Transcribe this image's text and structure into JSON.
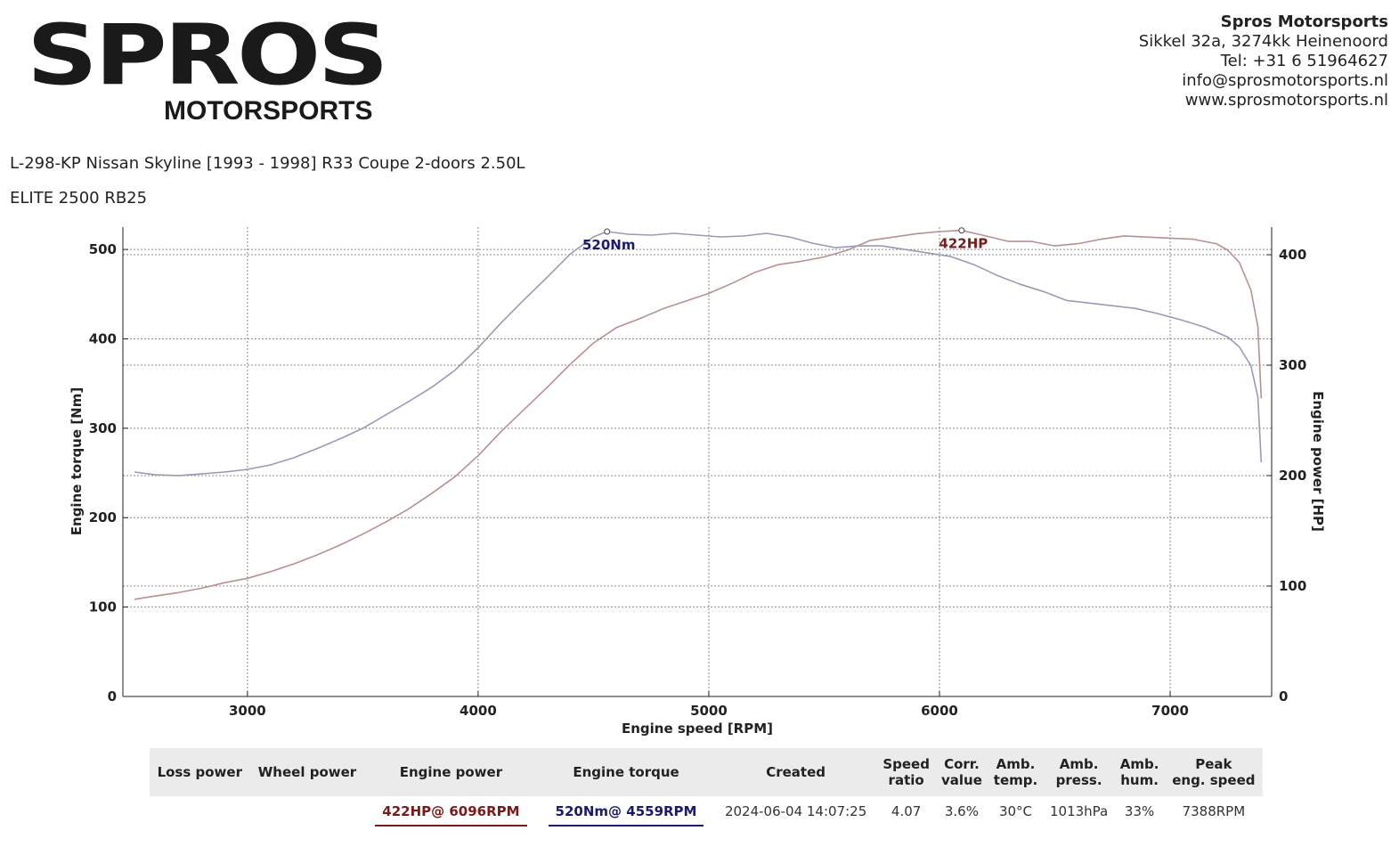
{
  "logo": {
    "main": "SPROS",
    "sub": "MOTORSPORTS"
  },
  "address": {
    "company": "Spros Motorsports",
    "street": "Sikkel 32a, 3274kk Heinenoord",
    "phone": "Tel: +31 6 51964627",
    "email": "info@sprosmotorsports.nl",
    "web": "www.sprosmotorsports.nl"
  },
  "vehicle": "L-298-KP Nissan Skyline [1993 - 1998] R33 Coupe 2-doors 2.50L",
  "engine": "ELITE 2500 RB25",
  "colors": {
    "torque": "#9a9ab8",
    "power": "#b89090",
    "torque_label": "#1a1a6e",
    "power_label": "#7a1a1a"
  },
  "chart_data": {
    "type": "line",
    "xlabel": "Engine speed [RPM]",
    "ylabel": "Engine torque [Nm]",
    "y2label": "Engine power [HP]",
    "xlim": [
      2460,
      7440
    ],
    "ylim": [
      0,
      525
    ],
    "y2lim": [
      0,
      425
    ],
    "x_ticks": [
      3000,
      4000,
      5000,
      6000,
      7000
    ],
    "y_ticks": [
      0,
      100,
      200,
      300,
      400,
      500
    ],
    "y2_ticks": [
      0,
      100,
      200,
      300,
      400
    ],
    "grid": true,
    "series": [
      {
        "name": "Engine torque",
        "axis": "left",
        "x": [
          2510,
          2600,
          2700,
          2800,
          2900,
          3000,
          3100,
          3200,
          3300,
          3400,
          3500,
          3600,
          3700,
          3800,
          3900,
          4000,
          4100,
          4200,
          4300,
          4400,
          4500,
          4559,
          4650,
          4750,
          4850,
          4950,
          5050,
          5150,
          5250,
          5350,
          5450,
          5550,
          5650,
          5750,
          5850,
          5950,
          6050,
          6150,
          6250,
          6350,
          6450,
          6550,
          6650,
          6750,
          6850,
          6950,
          7050,
          7150,
          7250,
          7300,
          7350,
          7380,
          7395
        ],
        "y": [
          251,
          248,
          247,
          249,
          251,
          254,
          259,
          267,
          277,
          288,
          300,
          315,
          330,
          346,
          365,
          390,
          418,
          444,
          469,
          495,
          514,
          520,
          517,
          516,
          518,
          516,
          514,
          515,
          518,
          514,
          507,
          502,
          504,
          504,
          500,
          496,
          492,
          483,
          471,
          461,
          453,
          443,
          440,
          437,
          434,
          428,
          421,
          413,
          402,
          391,
          370,
          335,
          262
        ]
      },
      {
        "name": "Engine power",
        "axis": "right",
        "x": [
          2510,
          2600,
          2700,
          2800,
          2900,
          3000,
          3100,
          3200,
          3300,
          3400,
          3500,
          3600,
          3700,
          3800,
          3900,
          4000,
          4100,
          4200,
          4300,
          4400,
          4500,
          4600,
          4700,
          4800,
          4900,
          5000,
          5100,
          5200,
          5300,
          5400,
          5500,
          5600,
          5700,
          5800,
          5900,
          6000,
          6096,
          6200,
          6300,
          6400,
          6500,
          6600,
          6700,
          6800,
          6900,
          7000,
          7100,
          7200,
          7250,
          7300,
          7350,
          7380,
          7395
        ],
        "y": [
          88,
          91,
          94,
          98,
          103,
          107,
          113,
          120,
          128,
          137,
          147,
          158,
          170,
          184,
          199,
          218,
          240,
          260,
          280,
          301,
          320,
          334,
          342,
          351,
          358,
          365,
          374,
          384,
          391,
          394,
          398,
          404,
          413,
          416,
          419,
          421,
          422,
          417,
          412,
          412,
          408,
          410,
          414,
          417,
          416,
          415,
          414,
          410,
          404,
          393,
          368,
          335,
          270
        ]
      }
    ],
    "annotations": [
      {
        "text": "520Nm",
        "x": 4559,
        "y": 520,
        "axis": "left"
      },
      {
        "text": "422HP",
        "x": 6096,
        "y": 422,
        "axis": "right"
      }
    ]
  },
  "results": {
    "headers": [
      [
        "Loss power"
      ],
      [
        "Wheel power"
      ],
      [
        "Engine power"
      ],
      [
        "Engine torque"
      ],
      [
        "Created"
      ],
      [
        "Speed",
        "ratio"
      ],
      [
        "Corr.",
        "value"
      ],
      [
        "Amb.",
        "temp."
      ],
      [
        "Amb.",
        "press."
      ],
      [
        "Amb.",
        "hum."
      ],
      [
        "Peak",
        "eng. speed"
      ]
    ],
    "values": {
      "loss_power": "",
      "wheel_power": "",
      "engine_power": "422HP@ 6096RPM",
      "engine_torque": "520Nm@ 4559RPM",
      "created": "2024-06-04 14:07:25",
      "speed_ratio": "4.07",
      "corr_value": "3.6%",
      "amb_temp": "30°C",
      "amb_press": "1013hPa",
      "amb_hum": "33%",
      "peak_speed": "7388RPM"
    }
  }
}
